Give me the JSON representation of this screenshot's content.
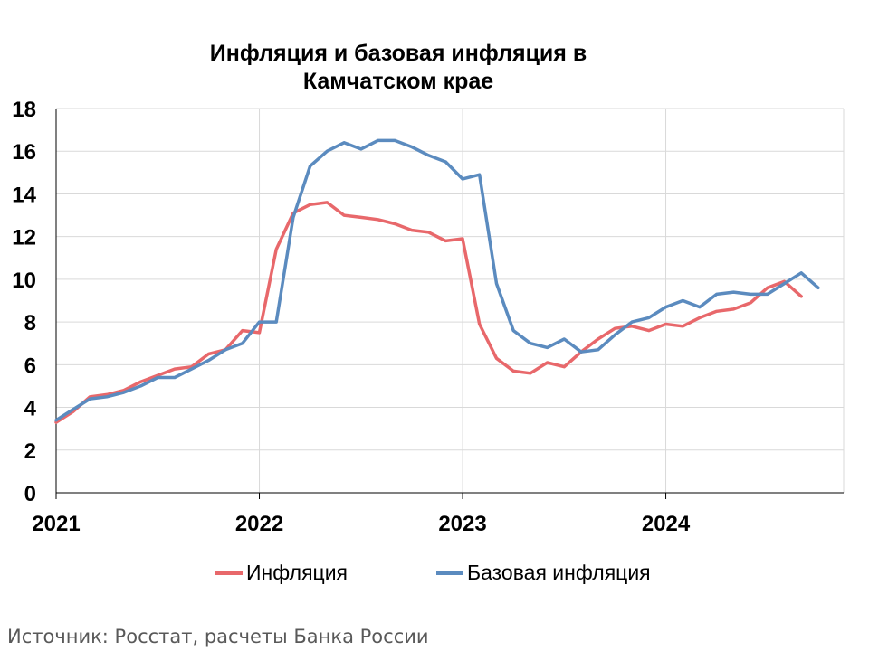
{
  "chart_data": {
    "type": "line",
    "title_lines": [
      "Инфляция и базовая инфляция в",
      "Камчатском крае"
    ],
    "xlabel": "",
    "ylabel": "",
    "ylim": [
      0,
      18
    ],
    "yticks": [
      0,
      2,
      4,
      6,
      8,
      10,
      12,
      14,
      16,
      18
    ],
    "xlim": [
      "2021-01",
      "2024-10"
    ],
    "x_tick_labels": [
      "2021",
      "2022",
      "2023",
      "2024"
    ],
    "grid": true,
    "legend_position": "bottom",
    "x": [
      "2021-01",
      "2021-02",
      "2021-03",
      "2021-04",
      "2021-05",
      "2021-06",
      "2021-07",
      "2021-08",
      "2021-09",
      "2021-10",
      "2021-11",
      "2021-12",
      "2022-01",
      "2022-02",
      "2022-03",
      "2022-04",
      "2022-05",
      "2022-06",
      "2022-07",
      "2022-08",
      "2022-09",
      "2022-10",
      "2022-11",
      "2022-12",
      "2023-01",
      "2023-02",
      "2023-03",
      "2023-04",
      "2023-05",
      "2023-06",
      "2023-07",
      "2023-08",
      "2023-09",
      "2023-10",
      "2023-11",
      "2023-12",
      "2024-01",
      "2024-02",
      "2024-03",
      "2024-04",
      "2024-05",
      "2024-06",
      "2024-07",
      "2024-08",
      "2024-09",
      "2024-10"
    ],
    "series": [
      {
        "name": "Инфляция",
        "color": "#e8686b",
        "values": [
          3.3,
          3.8,
          4.5,
          4.6,
          4.8,
          5.2,
          5.5,
          5.8,
          5.9,
          6.5,
          6.7,
          7.6,
          7.5,
          11.4,
          13.1,
          13.5,
          13.6,
          13.0,
          12.9,
          12.8,
          12.6,
          12.3,
          12.2,
          11.8,
          11.9,
          7.9,
          6.3,
          5.7,
          5.6,
          6.1,
          5.9,
          6.6,
          7.2,
          7.7,
          7.8,
          7.6,
          7.9,
          7.8,
          8.2,
          8.5,
          8.6,
          8.9,
          9.6,
          9.9,
          9.2,
          null
        ]
      },
      {
        "name": "Базовая инфляция",
        "color": "#5b8bbf",
        "values": [
          3.4,
          3.9,
          4.4,
          4.5,
          4.7,
          5.0,
          5.4,
          5.4,
          5.8,
          6.2,
          6.7,
          7.0,
          8.0,
          8.0,
          12.9,
          15.3,
          16.0,
          16.4,
          16.1,
          16.5,
          16.5,
          16.2,
          15.8,
          15.5,
          14.7,
          14.9,
          9.8,
          7.6,
          7.0,
          6.8,
          7.2,
          6.6,
          6.7,
          7.4,
          8.0,
          8.2,
          8.7,
          9.0,
          8.7,
          9.3,
          9.4,
          9.3,
          9.3,
          9.8,
          10.3,
          9.6
        ]
      }
    ]
  },
  "source_text": "Источник: Росстат, расчеты Банка России"
}
